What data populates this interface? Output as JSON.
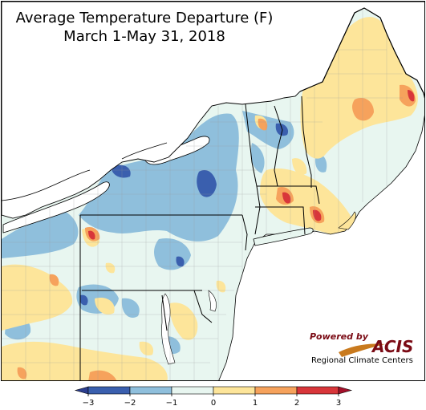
{
  "title": "Average Temperature Departure (F)",
  "subtitle": "March 1-May 31, 2018",
  "logo": {
    "powered_by": "Powered by",
    "name": "ACIS",
    "tagline": "Regional Climate Centers"
  },
  "legend": {
    "ticks": [
      "−3",
      "−2",
      "−1",
      "0",
      "1",
      "2",
      "3"
    ],
    "bins": [
      {
        "from": -3,
        "to": -2,
        "color": "#3a5fae"
      },
      {
        "from": -2,
        "to": -1,
        "color": "#8fbfdc"
      },
      {
        "from": -1,
        "to": 0,
        "color": "#e8f6f0"
      },
      {
        "from": 0,
        "to": 1,
        "color": "#fde59a"
      },
      {
        "from": 1,
        "to": 2,
        "color": "#f6a25c"
      },
      {
        "from": 2,
        "to": 3,
        "color": "#d8363a"
      }
    ],
    "under_color": "#2c3e8f",
    "over_color": "#a4102a"
  },
  "colors": {
    "lake": "#ffffff",
    "border": "#000000",
    "county": "#9a9a9a"
  }
}
